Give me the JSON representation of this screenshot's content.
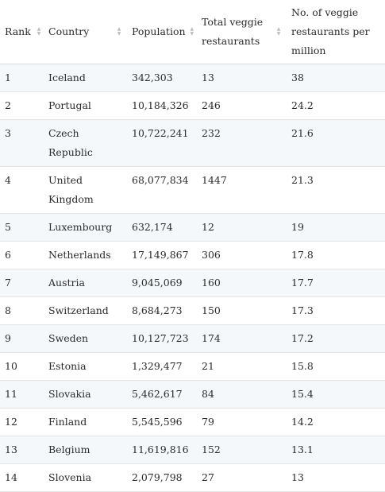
{
  "headers": {
    "rank": "Rank",
    "country": "Country",
    "population": "Population",
    "total": "Total veggie restaurants",
    "per_million": "No. of veggie restaurants per million"
  },
  "rows": [
    {
      "rank": "1",
      "country": "Iceland",
      "population": "342,303",
      "total": "13",
      "per_million": "38"
    },
    {
      "rank": "2",
      "country": "Portugal",
      "population": "10,184,326",
      "total": "246",
      "per_million": "24.2"
    },
    {
      "rank": "3",
      "country": "Czech Republic",
      "population": "10,722,241",
      "total": "232",
      "per_million": "21.6"
    },
    {
      "rank": "4",
      "country": "United Kingdom",
      "population": "68,077,834",
      "total": "1447",
      "per_million": "21.3"
    },
    {
      "rank": "5",
      "country": "Luxembourg",
      "population": "632,174",
      "total": "12",
      "per_million": "19"
    },
    {
      "rank": "6",
      "country": "Netherlands",
      "population": "17,149,867",
      "total": "306",
      "per_million": "17.8"
    },
    {
      "rank": "7",
      "country": "Austria",
      "population": "9,045,069",
      "total": "160",
      "per_million": "17.7"
    },
    {
      "rank": "8",
      "country": "Switzerland",
      "population": "8,684,273",
      "total": "150",
      "per_million": "17.3"
    },
    {
      "rank": "9",
      "country": "Sweden",
      "population": "10,127,723",
      "total": "174",
      "per_million": "17.2"
    },
    {
      "rank": "10",
      "country": "Estonia",
      "population": "1,329,477",
      "total": "21",
      "per_million": "15.8"
    },
    {
      "rank": "11",
      "country": "Slovakia",
      "population": "5,462,617",
      "total": "84",
      "per_million": "15.4"
    },
    {
      "rank": "12",
      "country": "Finland",
      "population": "5,545,596",
      "total": "79",
      "per_million": "14.2"
    },
    {
      "rank": "13",
      "country": "Belgium",
      "population": "11,619,816",
      "total": "152",
      "per_million": "13.1"
    },
    {
      "rank": "14",
      "country": "Slovenia",
      "population": "2,079,798",
      "total": "27",
      "per_million": "13"
    }
  ]
}
